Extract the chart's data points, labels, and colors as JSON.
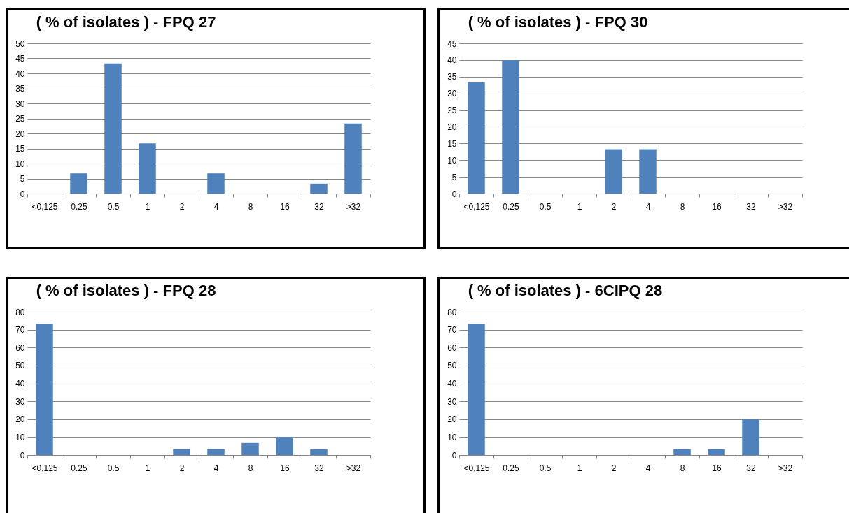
{
  "chart_data": [
    {
      "type": "bar",
      "title": "( % of isolates )  -  FPQ 27",
      "categories": [
        "<0,125",
        "0.25",
        "0.5",
        "1",
        "2",
        "4",
        "8",
        "16",
        "32",
        ">32"
      ],
      "values": [
        0,
        6.7,
        43.3,
        16.7,
        0,
        6.7,
        0,
        0,
        3.3,
        23.3
      ],
      "color": "#4f81bd",
      "ylim": [
        0,
        50
      ],
      "yticks": [
        0,
        5,
        10,
        15,
        20,
        25,
        30,
        35,
        40,
        45,
        50
      ],
      "grid": "y"
    },
    {
      "type": "bar",
      "title": "( % of isolates ) - FPQ 30",
      "categories": [
        "<0,125",
        "0.25",
        "0.5",
        "1",
        "2",
        "4",
        "8",
        "16",
        "32",
        ">32"
      ],
      "values": [
        33.3,
        40,
        0,
        0,
        13.3,
        13.3,
        0,
        0,
        0,
        0
      ],
      "color": "#4f81bd",
      "ylim": [
        0,
        45
      ],
      "yticks": [
        0,
        5,
        10,
        15,
        20,
        25,
        30,
        35,
        40,
        45
      ],
      "grid": "y"
    },
    {
      "type": "bar",
      "title": "( % of isolates ) -   FPQ 28",
      "categories": [
        "<0,125",
        "0.25",
        "0.5",
        "1",
        "2",
        "4",
        "8",
        "16",
        "32",
        ">32"
      ],
      "values": [
        73.3,
        0,
        0,
        0,
        3.3,
        3.3,
        6.7,
        10,
        3.3,
        0
      ],
      "color": "#4f81bd",
      "ylim": [
        0,
        80
      ],
      "yticks": [
        0,
        10,
        20,
        30,
        40,
        50,
        60,
        70,
        80
      ],
      "grid": "y"
    },
    {
      "type": "bar",
      "title": "( % of isolates )  -  6CIPQ 28",
      "categories": [
        "<0,125",
        "0.25",
        "0.5",
        "1",
        "2",
        "4",
        "8",
        "16",
        "32",
        ">32"
      ],
      "values": [
        73.3,
        0,
        0,
        0,
        0,
        0,
        3.3,
        3.3,
        20,
        0
      ],
      "color": "#4f81bd",
      "ylim": [
        0,
        80
      ],
      "yticks": [
        0,
        10,
        20,
        30,
        40,
        50,
        60,
        70,
        80
      ],
      "grid": "y"
    }
  ]
}
